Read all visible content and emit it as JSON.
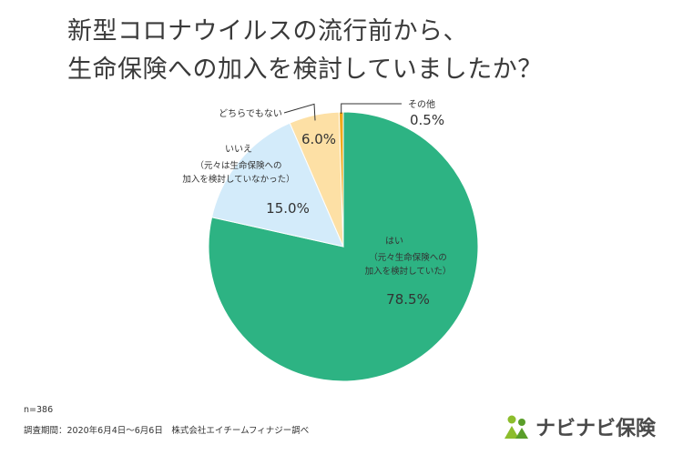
{
  "title_lines": [
    "新型コロナウイルスの流行前から、",
    "生命保険への加入を検討していましたか？"
  ],
  "chart_data": {
    "type": "pie",
    "title": "新型コロナウイルスの流行前から、生命保険への加入を検討していましたか？",
    "slices": [
      {
        "label_lines": [
          "はい",
          "（元々生命保険への",
          "加入を検討していた）"
        ],
        "value": 78.5,
        "value_text": "78.5%",
        "color": "#2db383"
      },
      {
        "label_lines": [
          "いいえ",
          "（元々は生命保険への",
          "加入を検討していなかった）"
        ],
        "value": 15.0,
        "value_text": "15.0%",
        "color": "#d3ebfa"
      },
      {
        "label_lines": [
          "どちらでもない"
        ],
        "value": 6.0,
        "value_text": "6.0%",
        "color": "#fde0a5"
      },
      {
        "label_lines": [
          "その他"
        ],
        "value": 0.5,
        "value_text": "0.5%",
        "color": "#f0a91a"
      }
    ]
  },
  "footnote": {
    "sample": "n=386",
    "survey": "調査期間：2020年6月4日～6月6日　株式会社エイチームフィナジー調べ"
  },
  "logo": {
    "text": "ナビナビ保険",
    "color": "#8cbd2c"
  }
}
